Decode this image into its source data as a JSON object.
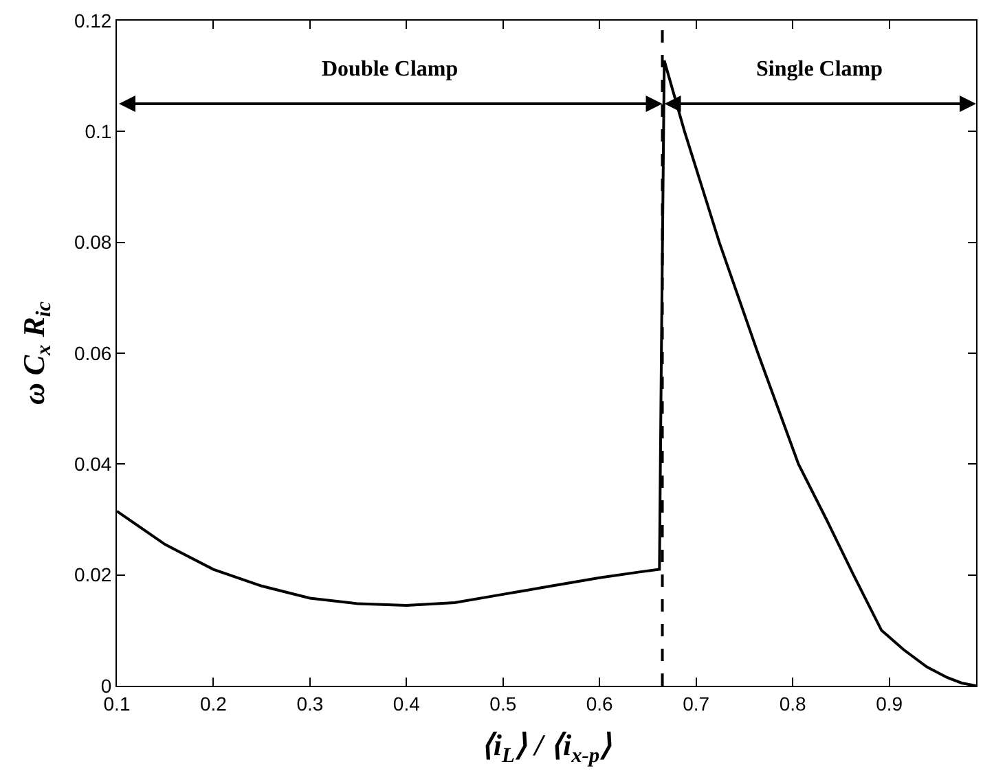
{
  "chart_data": {
    "type": "line",
    "xlabel": "⟨i$_{L}$⟩ / ⟨i$_{x-p}$⟩",
    "ylabel": "ω C$_{x}$ R$_{ic}$",
    "series": [
      {
        "color": "#000000",
        "x": [
          0.1,
          0.15,
          0.2,
          0.25,
          0.3,
          0.35,
          0.4,
          0.45,
          0.5,
          0.55,
          0.6,
          0.64,
          0.662,
          0.664,
          0.667,
          0.688,
          0.724,
          0.764,
          0.806,
          0.835,
          0.863,
          0.892,
          0.915,
          0.939,
          0.96,
          0.975,
          0.99
        ],
        "values": [
          0.0315,
          0.0255,
          0.021,
          0.018,
          0.0158,
          0.0148,
          0.0145,
          0.015,
          0.0165,
          0.018,
          0.0195,
          0.0205,
          0.021,
          0.06,
          0.1128,
          0.1,
          0.08,
          0.06,
          0.04,
          0.03,
          0.02,
          0.01,
          0.0065,
          0.0034,
          0.0015,
          0.0005,
          0.0
        ]
      }
    ],
    "xlim": [
      0.1,
      0.99
    ],
    "ylim": [
      0,
      0.12
    ],
    "xticks": [
      0.1,
      0.2,
      0.3,
      0.4,
      0.5,
      0.6,
      0.7,
      0.8,
      0.9
    ],
    "yticks": [
      0,
      0.02,
      0.04,
      0.06,
      0.08,
      0.1,
      0.12
    ],
    "ref_lines": [
      {
        "axis": "x",
        "value": 0.665,
        "line_style": "dashed",
        "color": "#000000"
      }
    ],
    "annotations": [
      "Double Clamp",
      "Single Clamp"
    ],
    "line_style": "solid",
    "marker": "none"
  }
}
